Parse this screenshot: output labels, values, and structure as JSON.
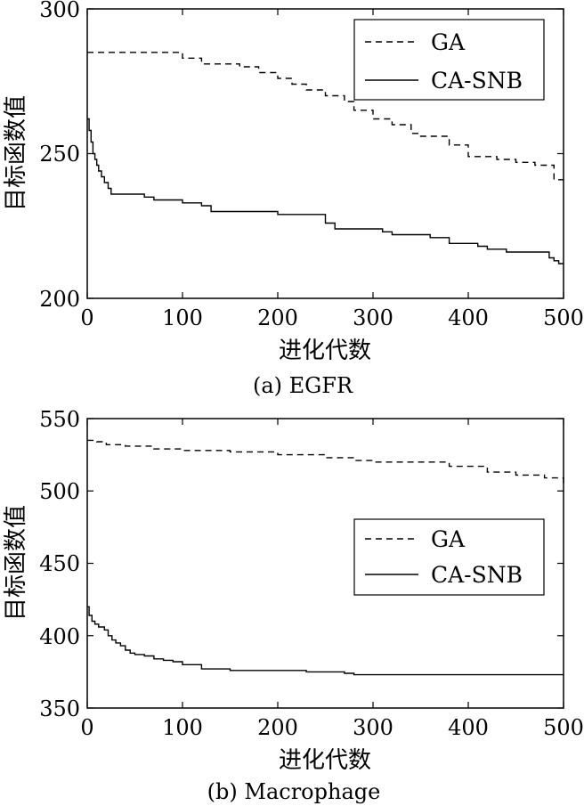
{
  "chart_data": [
    {
      "type": "line",
      "caption": "(a) EGFR",
      "xlabel": "进化代数",
      "ylabel": "目标函数值",
      "xlim": [
        0,
        500
      ],
      "ylim": [
        200,
        300
      ],
      "xticks": [
        "0",
        "100",
        "200",
        "300",
        "400",
        "500"
      ],
      "yticks": [
        "200",
        "250",
        "300"
      ],
      "legend": "top-right",
      "series": [
        {
          "name": "GA",
          "style": "dashed",
          "x": [
            0,
            65,
            100,
            120,
            160,
            180,
            200,
            215,
            230,
            250,
            270,
            280,
            300,
            320,
            340,
            350,
            380,
            400,
            430,
            450,
            470,
            490,
            500
          ],
          "y": [
            285,
            285,
            283,
            281,
            280,
            278,
            276,
            274,
            272,
            270,
            268,
            265,
            262,
            260,
            257,
            256,
            253,
            249,
            248,
            247,
            246,
            241,
            241
          ]
        },
        {
          "name": "CA-SNB",
          "style": "solid",
          "x": [
            0,
            2,
            4,
            6,
            8,
            10,
            12,
            15,
            18,
            22,
            25,
            30,
            60,
            70,
            100,
            120,
            130,
            180,
            200,
            230,
            250,
            260,
            300,
            310,
            320,
            350,
            360,
            380,
            410,
            420,
            440,
            480,
            485,
            490,
            495,
            500
          ],
          "y": [
            262,
            258,
            254,
            250,
            248,
            246,
            244,
            242,
            240,
            238,
            236,
            236,
            235,
            234,
            233,
            232,
            230,
            230,
            229,
            229,
            226,
            224,
            224,
            223,
            222,
            222,
            221,
            219,
            218,
            217,
            216,
            216,
            214,
            213,
            212,
            212
          ]
        }
      ]
    },
    {
      "type": "line",
      "caption": "(b) Macrophage",
      "xlabel": "进化代数",
      "ylabel": "目标函数值",
      "xlim": [
        0,
        500
      ],
      "ylim": [
        350,
        550
      ],
      "xticks": [
        "0",
        "100",
        "200",
        "300",
        "400",
        "500"
      ],
      "yticks": [
        "350",
        "400",
        "450",
        "500",
        "550"
      ],
      "legend": "center-right",
      "series": [
        {
          "name": "GA",
          "style": "dashed",
          "x": [
            0,
            10,
            20,
            40,
            60,
            70,
            100,
            150,
            200,
            250,
            280,
            300,
            350,
            380,
            420,
            450,
            480,
            500
          ],
          "y": [
            535,
            534,
            532,
            531,
            531,
            529,
            528,
            527,
            525,
            523,
            521,
            520,
            520,
            517,
            513,
            511,
            509,
            505
          ]
        },
        {
          "name": "CA-SNB",
          "style": "solid",
          "x": [
            0,
            2,
            5,
            8,
            12,
            18,
            22,
            26,
            30,
            35,
            40,
            45,
            50,
            60,
            70,
            80,
            90,
            100,
            120,
            150,
            170,
            200,
            230,
            250,
            270,
            280,
            300,
            400,
            500
          ],
          "y": [
            420,
            414,
            410,
            408,
            406,
            404,
            400,
            397,
            395,
            393,
            390,
            388,
            387,
            386,
            384,
            383,
            382,
            380,
            377,
            376,
            376,
            376,
            375,
            375,
            374,
            373,
            373,
            373,
            373
          ]
        }
      ]
    }
  ]
}
